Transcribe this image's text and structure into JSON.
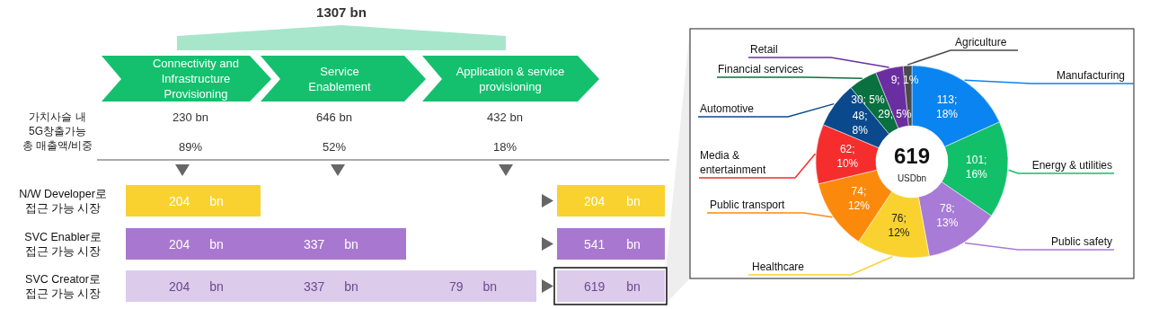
{
  "chart_data": [
    {
      "type": "other",
      "title": "1307 bn",
      "categories": [
        "Connectivity and\nInfrastructure\nProvisioning",
        "Service\nEnablement",
        "Application & service\nprovisioning"
      ],
      "totals": [
        "204 bn",
        "541 bn",
        "619 bn"
      ],
      "series": [
        {
          "name": "가치사슬 내\n5G창출가능\n총 매출액/비중",
          "values": [
            230,
            646,
            432
          ],
          "value_labels": [
            "230 bn",
            "646 bn",
            "432 bn"
          ]
        },
        {
          "values": [
            89,
            52,
            18
          ],
          "value_labels": [
            "89%",
            "52%",
            "18%"
          ]
        },
        {
          "name": "N/W Developer로\n접근 가능 시장",
          "color": "#f9d230",
          "values": [
            204,
            null,
            null
          ],
          "value_labels": [
            "204 bn",
            null,
            null
          ]
        },
        {
          "name": "SVC Enabler로\n접근 가능 시장",
          "color": "#a878d0",
          "values": [
            204,
            337,
            null
          ],
          "value_labels": [
            "204 bn",
            "337 bn",
            null
          ]
        },
        {
          "name": "SVC Creator로\n접근 가능 시장",
          "color": "#dccbea",
          "values": [
            204,
            337,
            79
          ],
          "value_labels": [
            "204 bn",
            "337 bn",
            "79 bn"
          ]
        }
      ]
    },
    {
      "type": "donut",
      "title": "619",
      "subtitle": "USDbn",
      "categories": [
        "Manufacturing",
        "Energy & utilities",
        "Public safety",
        "Healthcare",
        "Public transport",
        "Media &\nentertainment",
        "Automotive",
        "Financial services",
        "Retail",
        "Agriculture"
      ],
      "values": [
        113,
        101,
        78,
        76,
        74,
        62,
        48,
        30,
        29,
        9
      ],
      "colors": [
        "#0a84f0",
        "#12c06a",
        "#a77bd6",
        "#f9d230",
        "#fb8a0c",
        "#f52d2d",
        "#0a4a8c",
        "#0a7040",
        "#6b2ea0",
        "#4a4a4a"
      ],
      "value_labels": [
        "113; 18%",
        "101; 16%",
        "78; 13%",
        "76; 12%",
        "74; 12%",
        "62; 10%",
        "48; 8%",
        "30; 5%",
        "29; 5%",
        "9; 1%"
      ]
    }
  ]
}
